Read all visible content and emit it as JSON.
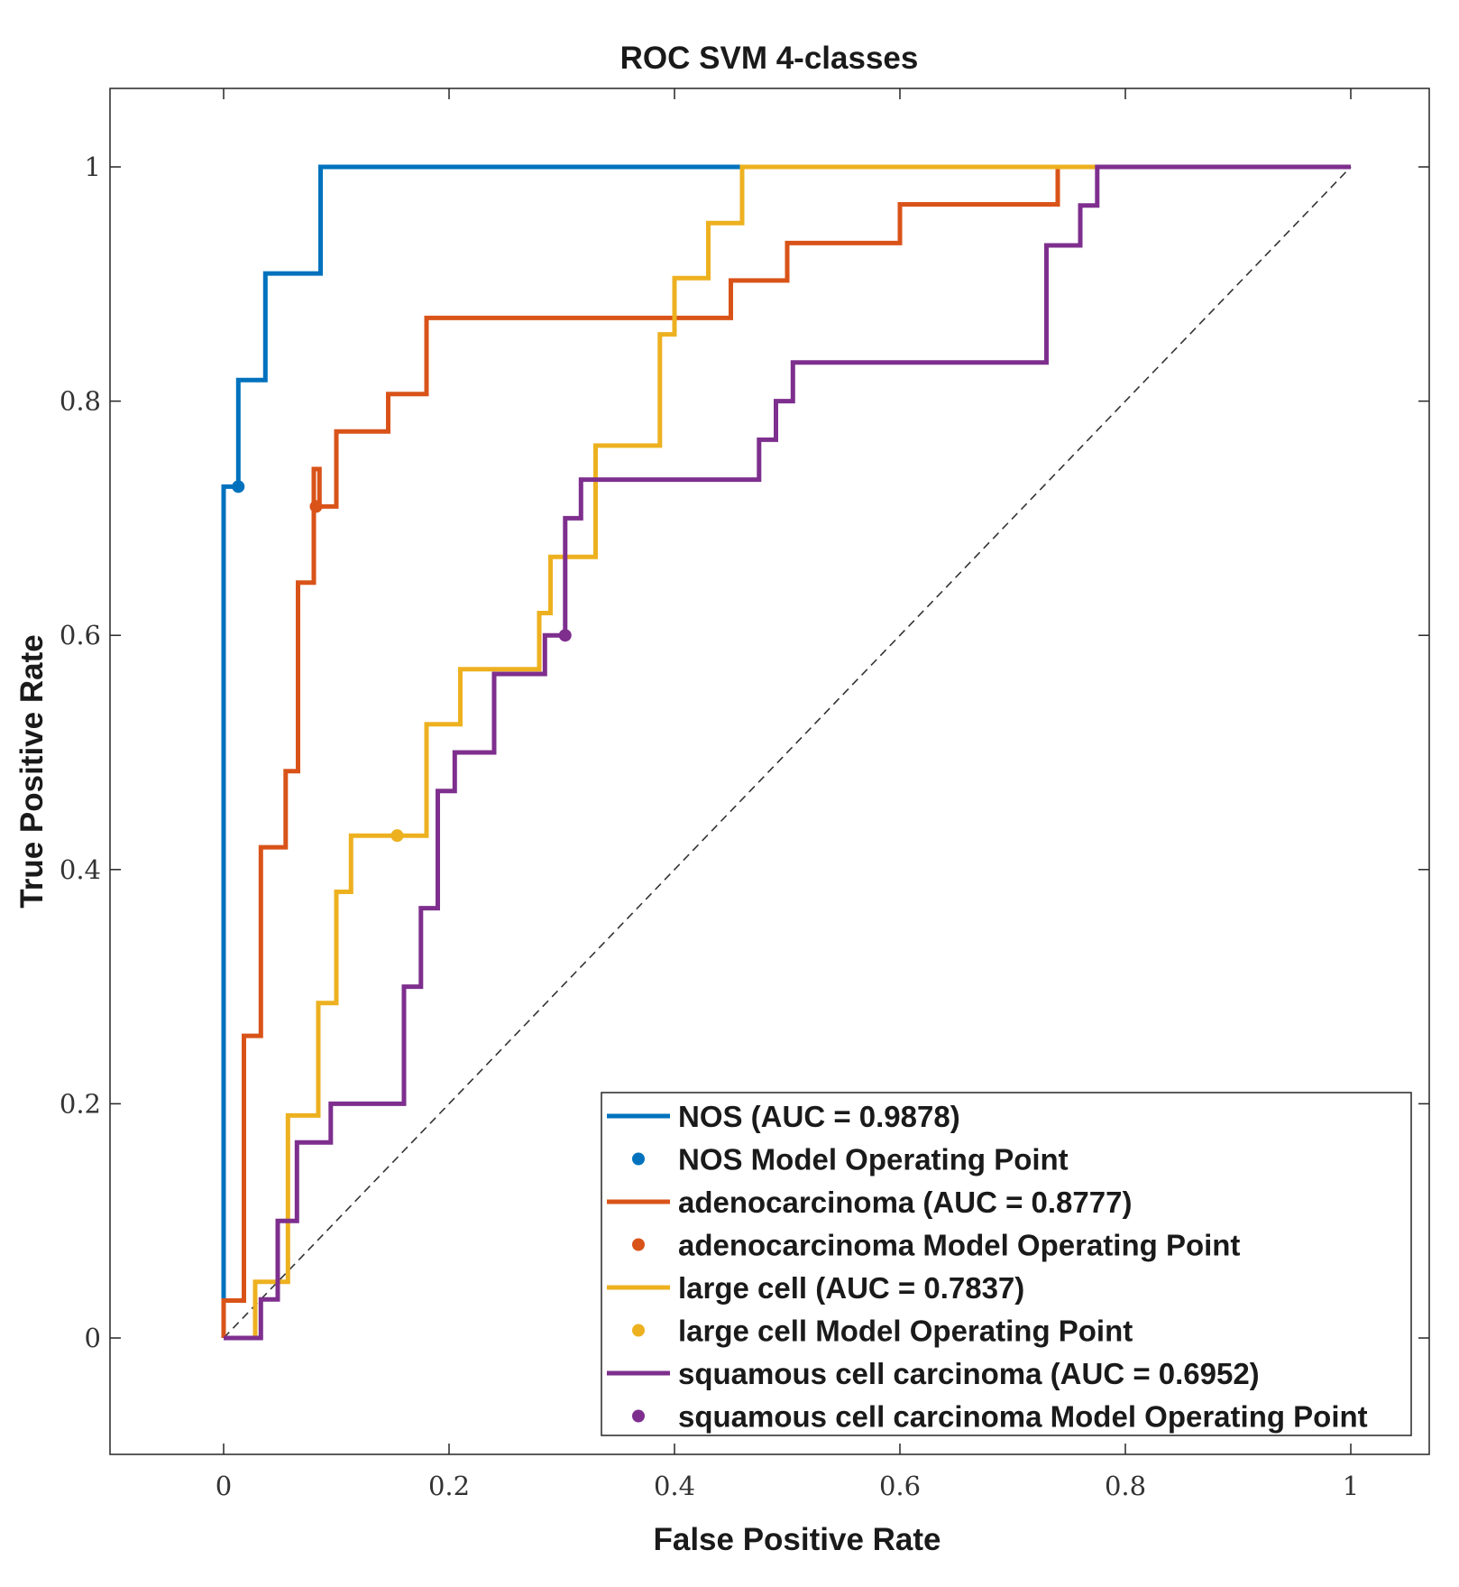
{
  "chart_data": {
    "type": "line",
    "title": "ROC SVM 4-classes",
    "xlabel": "False Positive Rate",
    "ylabel": "True Positive Rate",
    "xlim": [
      -0.1,
      1.07
    ],
    "ylim": [
      -0.1,
      1.065
    ],
    "xticks": [
      0,
      0.2,
      0.4,
      0.6,
      0.8,
      1
    ],
    "xtick_labels": [
      "0",
      "0.2",
      "0.4",
      "0.6",
      "0.8",
      "1"
    ],
    "yticks": [
      0,
      0.2,
      0.4,
      0.6,
      0.8,
      1
    ],
    "ytick_labels": [
      "0",
      "0.2",
      "0.4",
      "0.6",
      "0.8",
      "1"
    ],
    "grid": false,
    "legend_position": "bottom-right",
    "reference_line": {
      "x": [
        0,
        1
      ],
      "y": [
        0,
        1
      ],
      "style": "dashed",
      "color": "#333333"
    },
    "series": [
      {
        "name": "NOS",
        "legend_label": "NOS (AUC = 0.9878)",
        "auc": 0.9878,
        "color": "#0072BD",
        "x": [
          0,
          0,
          0.013,
          0.013,
          0.037,
          0.037,
          0.086,
          0.086,
          0.46,
          1.0
        ],
        "y": [
          0,
          0.727,
          0.727,
          0.818,
          0.818,
          0.909,
          0.909,
          1.0,
          1.0,
          1.0
        ],
        "operating_point": {
          "label": "NOS Model Operating Point",
          "x": 0.013,
          "y": 0.727
        }
      },
      {
        "name": "adenocarcinoma",
        "legend_label": "adenocarcinoma (AUC = 0.8777)",
        "auc": 0.8777,
        "color": "#D95319",
        "x": [
          0,
          0,
          0.018,
          0.018,
          0.033,
          0.033,
          0.055,
          0.055,
          0.066,
          0.066,
          0.08,
          0.08,
          0.085,
          0.085,
          0.1,
          0.1,
          0.146,
          0.146,
          0.18,
          0.18,
          0.42,
          0.42,
          0.45,
          0.45,
          0.5,
          0.5,
          0.6,
          0.6,
          0.74,
          0.74,
          0.78,
          1.0
        ],
        "y": [
          0,
          0.032,
          0.032,
          0.258,
          0.258,
          0.419,
          0.419,
          0.484,
          0.484,
          0.645,
          0.645,
          0.742,
          0.742,
          0.71,
          0.71,
          0.774,
          0.774,
          0.806,
          0.806,
          0.871,
          0.871,
          0.871,
          0.871,
          0.903,
          0.903,
          0.935,
          0.935,
          0.968,
          0.968,
          1.0,
          1.0,
          1.0
        ],
        "operating_point": {
          "label": "adenocarcinoma Model Operating Point",
          "x": 0.082,
          "y": 0.71
        }
      },
      {
        "name": "large cell",
        "legend_label": "large cell (AUC = 0.7837)",
        "auc": 0.7837,
        "color": "#EDB120",
        "x": [
          0,
          0.028,
          0.028,
          0.057,
          0.057,
          0.084,
          0.084,
          0.1,
          0.1,
          0.113,
          0.113,
          0.154,
          0.18,
          0.18,
          0.21,
          0.21,
          0.28,
          0.28,
          0.29,
          0.29,
          0.33,
          0.33,
          0.387,
          0.387,
          0.4,
          0.4,
          0.42,
          0.42,
          0.43,
          0.43,
          0.46,
          0.46,
          0.78
        ],
        "y": [
          0,
          0,
          0.048,
          0.048,
          0.19,
          0.19,
          0.286,
          0.286,
          0.381,
          0.381,
          0.429,
          0.429,
          0.429,
          0.524,
          0.524,
          0.571,
          0.571,
          0.619,
          0.619,
          0.667,
          0.667,
          0.762,
          0.762,
          0.857,
          0.857,
          0.905,
          0.905,
          0.905,
          0.905,
          0.952,
          0.952,
          1.0,
          1.0
        ],
        "operating_point": {
          "label": "large cell Model Operating Point",
          "x": 0.154,
          "y": 0.429
        }
      },
      {
        "name": "squamous cell carcinoma",
        "legend_label": "squamous cell carcinoma (AUC = 0.6952)",
        "auc": 0.6952,
        "color": "#7E2F8E",
        "x": [
          0,
          0.033,
          0.033,
          0.048,
          0.048,
          0.065,
          0.065,
          0.095,
          0.095,
          0.16,
          0.16,
          0.175,
          0.175,
          0.19,
          0.19,
          0.205,
          0.205,
          0.24,
          0.24,
          0.285,
          0.285,
          0.303,
          0.303,
          0.317,
          0.317,
          0.475,
          0.475,
          0.49,
          0.49,
          0.505,
          0.505,
          0.73,
          0.73,
          0.76,
          0.76,
          0.775,
          0.775,
          1.0
        ],
        "y": [
          0,
          0,
          0.033,
          0.033,
          0.1,
          0.1,
          0.167,
          0.167,
          0.2,
          0.2,
          0.3,
          0.3,
          0.367,
          0.367,
          0.467,
          0.467,
          0.5,
          0.5,
          0.567,
          0.567,
          0.6,
          0.6,
          0.7,
          0.7,
          0.733,
          0.733,
          0.767,
          0.767,
          0.8,
          0.8,
          0.833,
          0.833,
          0.933,
          0.933,
          0.967,
          0.967,
          1.0,
          1.0
        ],
        "operating_point": {
          "label": "squamous cell carcinoma Model Operating Point",
          "x": 0.303,
          "y": 0.6
        }
      }
    ]
  }
}
